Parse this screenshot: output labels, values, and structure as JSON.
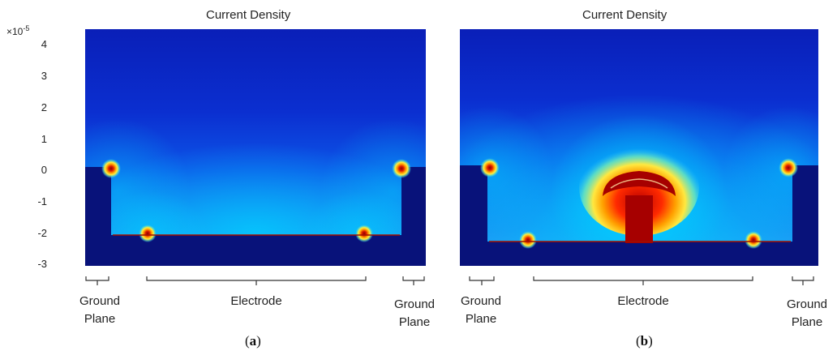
{
  "panel_a": {
    "title": "Current Density",
    "y_exponent_base": "×10",
    "y_exponent_power": "-5",
    "y_ticks": [
      "4",
      "3",
      "2",
      "1",
      "0",
      "-1",
      "-2",
      "-3"
    ],
    "labels": {
      "ground_left": "Ground Plane",
      "electrode": "Electrode",
      "ground_right": "Ground Plane"
    },
    "caption": "a"
  },
  "panel_b": {
    "title": "Current Density",
    "labels": {
      "ground_left": "Ground Plane",
      "electrode": "Electrode",
      "ground_right": "Ground Plane"
    },
    "caption": "b"
  },
  "colors": {
    "field_low": "#0b2ac6",
    "field_mid": "#00b4ff",
    "hot": "#c41a00",
    "solid": "#08127a"
  }
}
